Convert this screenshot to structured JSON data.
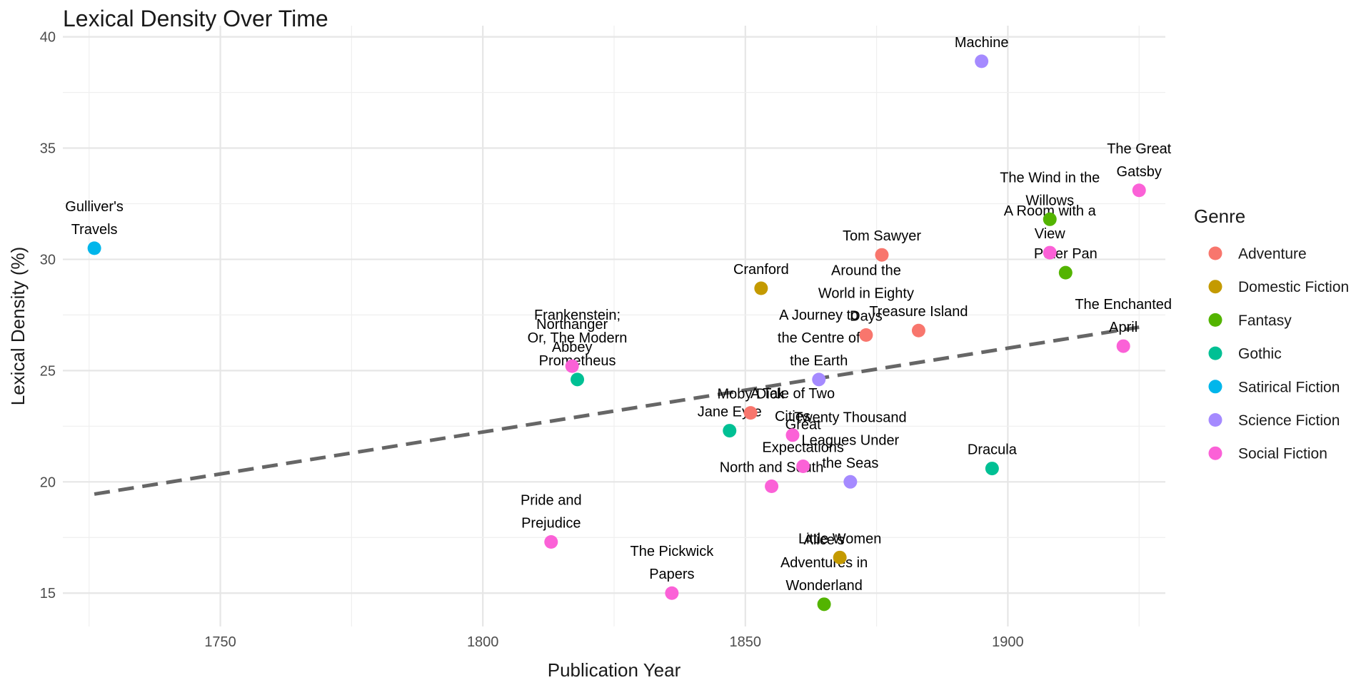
{
  "chart_data": {
    "type": "scatter",
    "title": "Lexical Density Over Time",
    "xlabel": "Publication Year",
    "ylabel": "Lexical Density (%)",
    "xlim": [
      1720,
      1930
    ],
    "ylim": [
      13.5,
      40.5
    ],
    "x_ticks": [
      1750,
      1800,
      1850,
      1900
    ],
    "y_ticks": [
      15,
      20,
      25,
      30,
      35,
      40
    ],
    "x_tick_labels": [
      "1750",
      "1800",
      "1850",
      "1900"
    ],
    "y_tick_labels": [
      "15",
      "20",
      "25",
      "30",
      "35",
      "40"
    ],
    "grid": true,
    "legend": {
      "title": "Genre",
      "position": "right"
    },
    "genres": [
      {
        "name": "Adventure",
        "color": "#F8766D"
      },
      {
        "name": "Domestic Fiction",
        "color": "#C49A00"
      },
      {
        "name": "Fantasy",
        "color": "#53B400"
      },
      {
        "name": "Gothic",
        "color": "#00C094"
      },
      {
        "name": "Satirical Fiction",
        "color": "#00B6EB"
      },
      {
        "name": "Science Fiction",
        "color": "#A58AFF"
      },
      {
        "name": "Social Fiction",
        "color": "#FB61D7"
      }
    ],
    "trend_line": {
      "style": "dashed",
      "color": "#666666",
      "x": [
        1726,
        1925
      ],
      "y": [
        19.45,
        26.95
      ]
    },
    "points": [
      {
        "title": "Gulliver's Travels",
        "label_lines": [
          "Gulliver's",
          "Travels"
        ],
        "x": 1726,
        "y": 30.5,
        "genre": "Satirical Fiction"
      },
      {
        "title": "Pride and Prejudice",
        "label_lines": [
          "Pride and",
          "Prejudice"
        ],
        "x": 1813,
        "y": 17.3,
        "genre": "Social Fiction"
      },
      {
        "title": "Northanger Abbey",
        "label_lines": [
          "Northanger",
          "Abbey"
        ],
        "x": 1817,
        "y": 25.2,
        "genre": "Social Fiction"
      },
      {
        "title": "Frankenstein; Or, The Modern Prometheus",
        "label_lines": [
          "Frankenstein;",
          "Or, The Modern",
          "Prometheus"
        ],
        "x": 1818,
        "y": 24.6,
        "genre": "Gothic"
      },
      {
        "title": "The Pickwick Papers",
        "label_lines": [
          "The Pickwick",
          "Papers"
        ],
        "x": 1836,
        "y": 15.0,
        "genre": "Social Fiction"
      },
      {
        "title": "Jane Eyre",
        "label_lines": [
          "Jane Eyre"
        ],
        "x": 1847,
        "y": 22.3,
        "genre": "Gothic"
      },
      {
        "title": "Moby Dick",
        "label_lines": [
          "Moby Dick"
        ],
        "x": 1851,
        "y": 23.1,
        "genre": "Adventure"
      },
      {
        "title": "Cranford",
        "label_lines": [
          "Cranford"
        ],
        "x": 1853,
        "y": 28.7,
        "genre": "Domestic Fiction"
      },
      {
        "title": "North and South",
        "label_lines": [
          "North and South"
        ],
        "x": 1855,
        "y": 19.8,
        "genre": "Social Fiction"
      },
      {
        "title": "A Tale of Two Cities",
        "label_lines": [
          "A Tale of Two",
          "Cities"
        ],
        "x": 1859,
        "y": 22.1,
        "genre": "Social Fiction"
      },
      {
        "title": "Great Expectations",
        "label_lines": [
          "Great",
          "Expectations"
        ],
        "x": 1861,
        "y": 20.7,
        "genre": "Social Fiction"
      },
      {
        "title": "A Journey to the Centre of the Earth",
        "label_lines": [
          "A Journey to",
          "the Centre of",
          "the Earth"
        ],
        "x": 1864,
        "y": 24.6,
        "genre": "Science Fiction"
      },
      {
        "title": "Alice's Adventures in Wonderland",
        "label_lines": [
          "Alice's",
          "Adventures in",
          "Wonderland"
        ],
        "x": 1865,
        "y": 14.5,
        "genre": "Fantasy"
      },
      {
        "title": "Little Women",
        "label_lines": [
          "Little Women"
        ],
        "x": 1868,
        "y": 16.6,
        "genre": "Domestic Fiction"
      },
      {
        "title": "Twenty Thousand Leagues Under the Seas",
        "label_lines": [
          "Twenty Thousand",
          "Leagues Under",
          "the Seas"
        ],
        "x": 1870,
        "y": 20.0,
        "genre": "Science Fiction"
      },
      {
        "title": "Around the World in Eighty Days",
        "label_lines": [
          "Around the",
          "World in Eighty",
          "Days"
        ],
        "x": 1873,
        "y": 26.6,
        "genre": "Adventure"
      },
      {
        "title": "Tom Sawyer",
        "label_lines": [
          "Tom Sawyer"
        ],
        "x": 1876,
        "y": 30.2,
        "genre": "Adventure"
      },
      {
        "title": "Treasure Island",
        "label_lines": [
          "Treasure Island"
        ],
        "x": 1883,
        "y": 26.8,
        "genre": "Adventure"
      },
      {
        "title": "The Time Machine",
        "label_lines": [
          "Machine"
        ],
        "x": 1895,
        "y": 38.9,
        "genre": "Science Fiction"
      },
      {
        "title": "Dracula",
        "label_lines": [
          "Dracula"
        ],
        "x": 1897,
        "y": 20.6,
        "genre": "Gothic"
      },
      {
        "title": "A Room with a View",
        "label_lines": [
          "A Room with a",
          "View"
        ],
        "x": 1908,
        "y": 30.3,
        "genre": "Social Fiction"
      },
      {
        "title": "The Wind in the Willows",
        "label_lines": [
          "The Wind in the",
          "Willows"
        ],
        "x": 1908,
        "y": 31.8,
        "genre": "Fantasy"
      },
      {
        "title": "Peter Pan",
        "label_lines": [
          "Peter Pan"
        ],
        "x": 1911,
        "y": 29.4,
        "genre": "Fantasy"
      },
      {
        "title": "The Enchanted April",
        "label_lines": [
          "The Enchanted",
          "April"
        ],
        "x": 1922,
        "y": 26.1,
        "genre": "Social Fiction"
      },
      {
        "title": "The Great Gatsby",
        "label_lines": [
          "The Great",
          "Gatsby"
        ],
        "x": 1925,
        "y": 33.1,
        "genre": "Social Fiction"
      }
    ]
  }
}
